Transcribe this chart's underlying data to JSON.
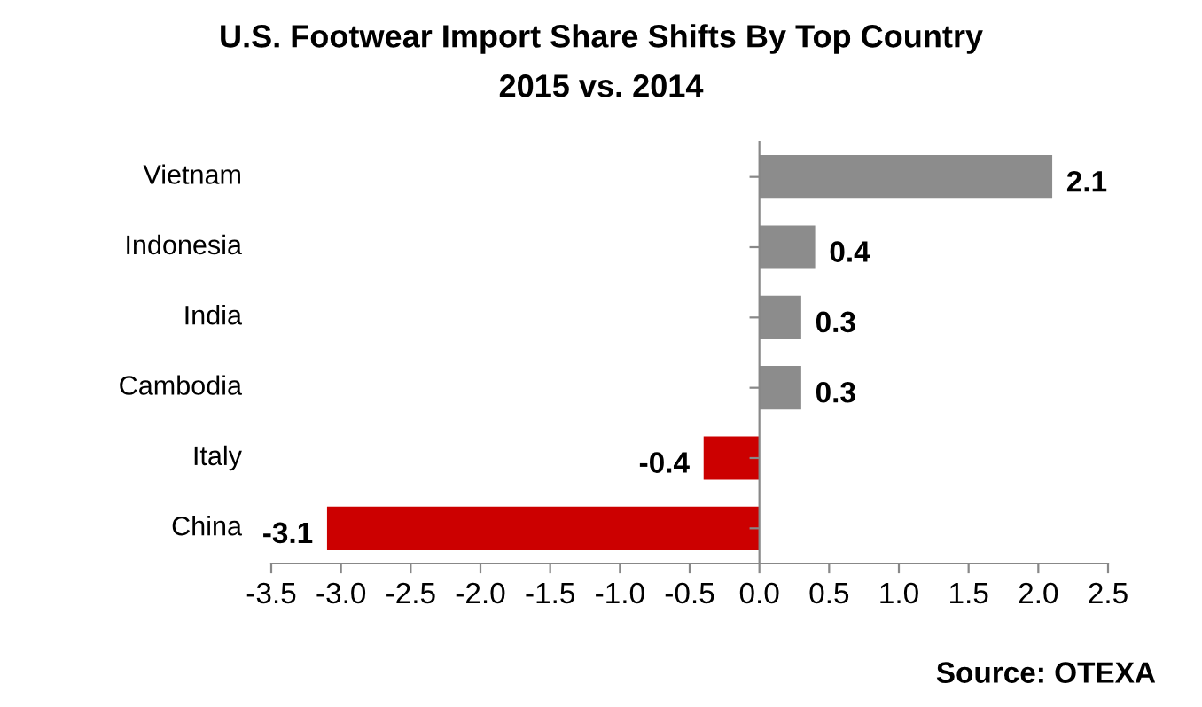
{
  "chart_data": {
    "type": "bar",
    "orientation": "horizontal",
    "title": "U.S. Footwear Import Share Shifts By Top Country",
    "subtitle": "2015 vs. 2014",
    "categories": [
      "Vietnam",
      "Indonesia",
      "India",
      "Cambodia",
      "Italy",
      "China"
    ],
    "values": [
      2.1,
      0.4,
      0.3,
      0.3,
      -0.4,
      -3.1
    ],
    "colors": [
      "#8c8c8c",
      "#8c8c8c",
      "#8c8c8c",
      "#8c8c8c",
      "#cc0000",
      "#cc0000"
    ],
    "data_labels": true,
    "xlim": [
      -3.5,
      2.5
    ],
    "xticks": [
      -3.5,
      {
        "value": -3.0,
        "label": "-3.0"
      },
      -2.5,
      {
        "value": -2.0,
        "label": "-2.0"
      },
      -1.5,
      {
        "value": -1.0,
        "label": "-1.0"
      },
      -0.5,
      {
        "value": 0.0,
        "label": "0.0"
      },
      0.5,
      {
        "value": 1.0,
        "label": "1.0"
      },
      1.5,
      {
        "value": 2.0,
        "label": "2.0"
      },
      2.5
    ],
    "legend": false,
    "annotations": [
      "Source: OTEXA"
    ]
  }
}
